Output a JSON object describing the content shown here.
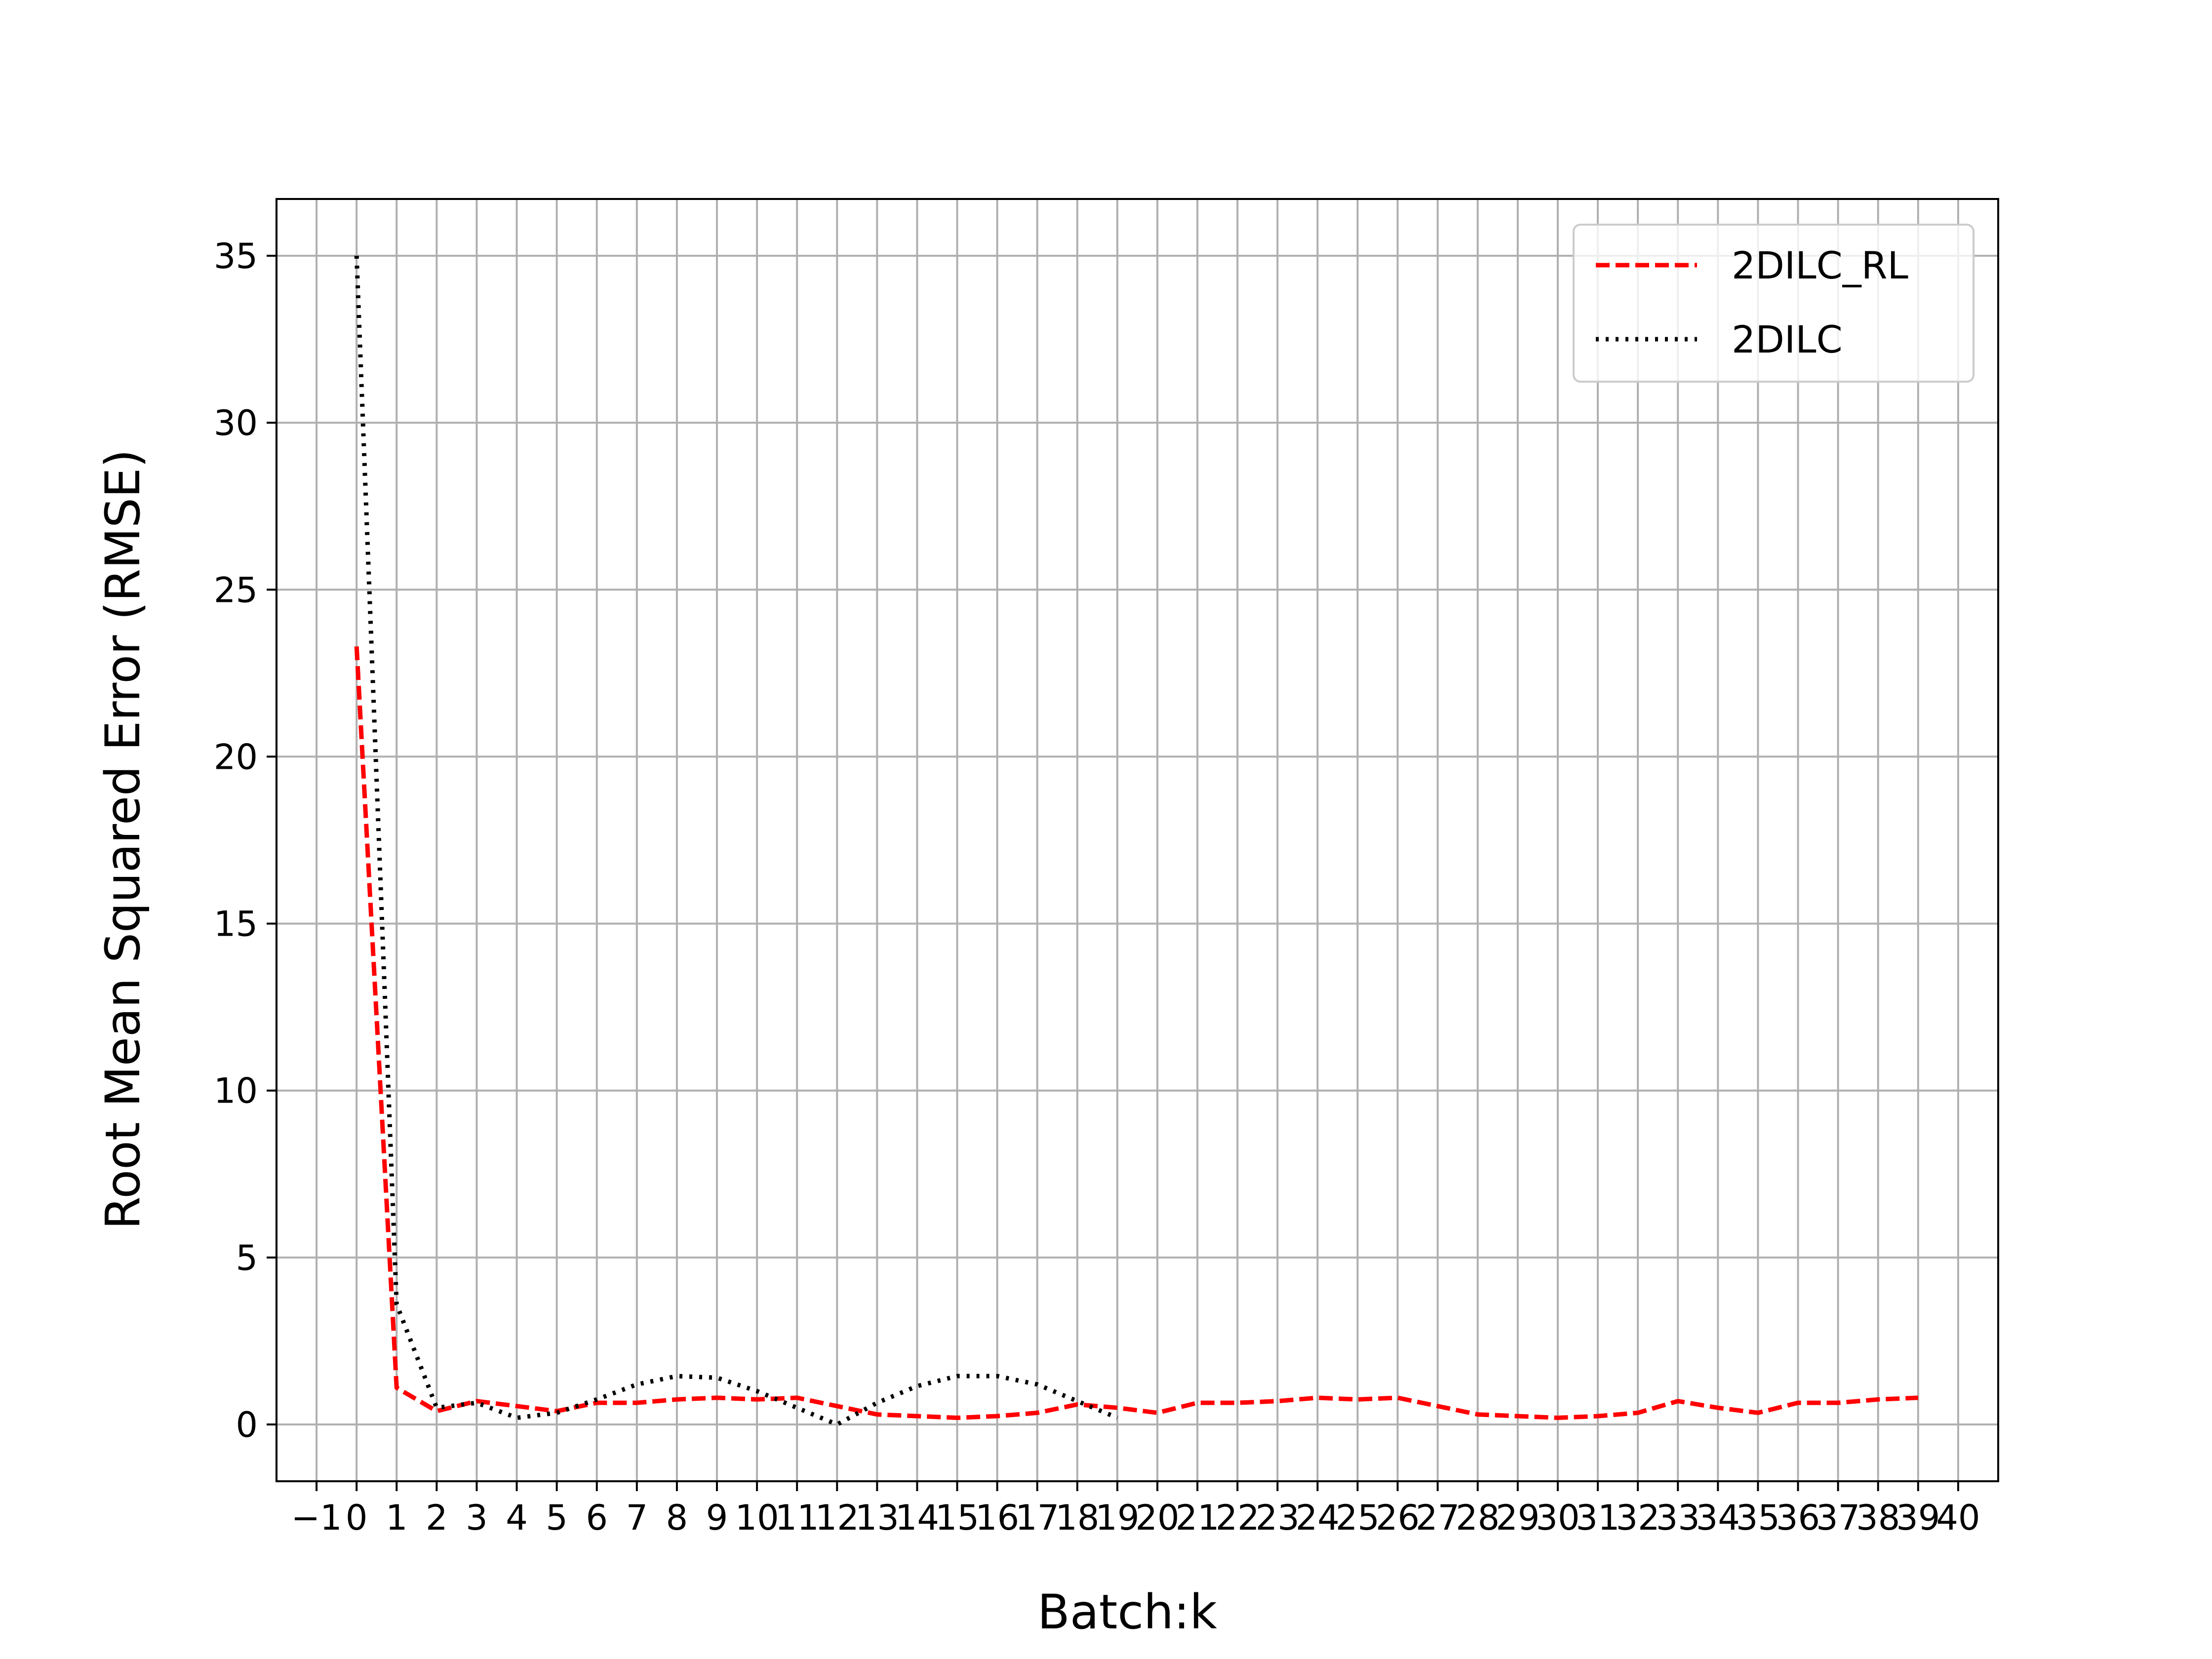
{
  "chart_data": {
    "type": "line",
    "title": "",
    "xlabel": "Batch:k",
    "ylabel": "Root Mean Squared Error (RMSE)",
    "xlim": [
      -2,
      41
    ],
    "ylim": [
      -1.7,
      36.7
    ],
    "x_ticks": [
      -1,
      0,
      1,
      2,
      3,
      4,
      5,
      6,
      7,
      8,
      9,
      10,
      11,
      12,
      13,
      14,
      15,
      16,
      17,
      18,
      19,
      20,
      21,
      22,
      23,
      24,
      25,
      26,
      27,
      28,
      29,
      30,
      31,
      32,
      33,
      34,
      35,
      36,
      37,
      38,
      39,
      40
    ],
    "x_tick_labels": [
      "−1",
      "0",
      "1",
      "2",
      "3",
      "4",
      "5",
      "6",
      "7",
      "8",
      "9",
      "10",
      "11",
      "12",
      "13",
      "14",
      "15",
      "16",
      "17",
      "18",
      "19",
      "20",
      "21",
      "22",
      "23",
      "24",
      "25",
      "26",
      "27",
      "28",
      "29",
      "30",
      "31",
      "32",
      "33",
      "34",
      "35",
      "36",
      "37",
      "38",
      "39",
      "40"
    ],
    "y_ticks": [
      0,
      5,
      10,
      15,
      20,
      25,
      30,
      35
    ],
    "y_tick_labels": [
      "0",
      "5",
      "10",
      "15",
      "20",
      "25",
      "30",
      "35"
    ],
    "grid": true,
    "legend_position": "top-right",
    "series": [
      {
        "name": "2DILC_RL",
        "color": "#ff0000",
        "style": "dashed",
        "x": [
          0,
          1,
          2,
          3,
          4,
          5,
          6,
          7,
          8,
          9,
          10,
          11,
          12,
          13,
          14,
          15,
          16,
          17,
          18,
          19,
          20,
          21,
          22,
          23,
          24,
          25,
          26,
          27,
          28,
          29,
          30,
          31,
          32,
          33,
          34,
          35,
          36,
          37,
          38,
          39
        ],
        "y": [
          23.3,
          1.1,
          0.4,
          0.7,
          0.55,
          0.4,
          0.65,
          0.65,
          0.75,
          0.8,
          0.75,
          0.8,
          0.55,
          0.3,
          0.25,
          0.2,
          0.25,
          0.35,
          0.6,
          0.5,
          0.35,
          0.65,
          0.65,
          0.7,
          0.8,
          0.75,
          0.8,
          0.55,
          0.3,
          0.25,
          0.2,
          0.25,
          0.35,
          0.7,
          0.5,
          0.35,
          0.65,
          0.65,
          0.75,
          0.8
        ]
      },
      {
        "name": "2DILC",
        "color": "#000000",
        "style": "dotted",
        "x": [
          0,
          1,
          2,
          3,
          4,
          5,
          6,
          7,
          8,
          9,
          10,
          11,
          12,
          13,
          14,
          15,
          16,
          17,
          18,
          19
        ],
        "y": [
          35.0,
          3.6,
          0.5,
          0.65,
          0.2,
          0.35,
          0.75,
          1.2,
          1.45,
          1.4,
          1.0,
          0.5,
          0.0,
          0.65,
          1.15,
          1.45,
          1.45,
          1.2,
          0.7,
          0.2
        ]
      }
    ]
  }
}
